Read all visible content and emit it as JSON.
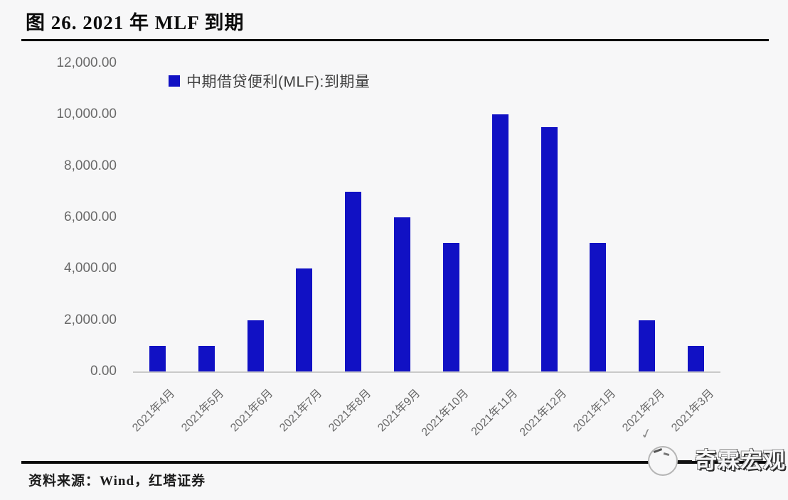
{
  "figure": {
    "title": "图 26. 2021 年 MLF 到期",
    "source": "资料来源：Wind，红塔证券",
    "watermark": "奇霖宏观",
    "watermark_check": "✓"
  },
  "colors": {
    "bar": "#1111c4",
    "title_text": "#0c0c0c",
    "axis_text": "#6a6a6a",
    "legend_text": "#3f3f3f",
    "rule": "#0a0a0a",
    "baseline": "#c9c9c9",
    "background": "#f7f7f8"
  },
  "chart_data": {
    "type": "bar",
    "title": "",
    "legend": [
      "中期借贷便利(MLF):到期量"
    ],
    "legend_position": "top-left",
    "categories": [
      "2021年4月",
      "2021年5月",
      "2021年6月",
      "2021年7月",
      "2021年8月",
      "2021年9月",
      "2021年10月",
      "2021年11月",
      "2021年12月",
      "2021年1月",
      "2021年2月",
      "2021年3月"
    ],
    "values": [
      1000,
      1000,
      2000,
      4000,
      7000,
      6000,
      5000,
      10000,
      9500,
      5000,
      2000,
      1000
    ],
    "xlabel": "",
    "ylabel": "",
    "ylim": [
      0,
      12000
    ],
    "ytick_interval": 2000,
    "ytick_labels": [
      "12,000.00",
      "10,000.00",
      "8,000.00",
      "6,000.00",
      "4,000.00",
      "2,000.00",
      "0.00"
    ],
    "grid": false,
    "bar_color": "#1111c4"
  }
}
